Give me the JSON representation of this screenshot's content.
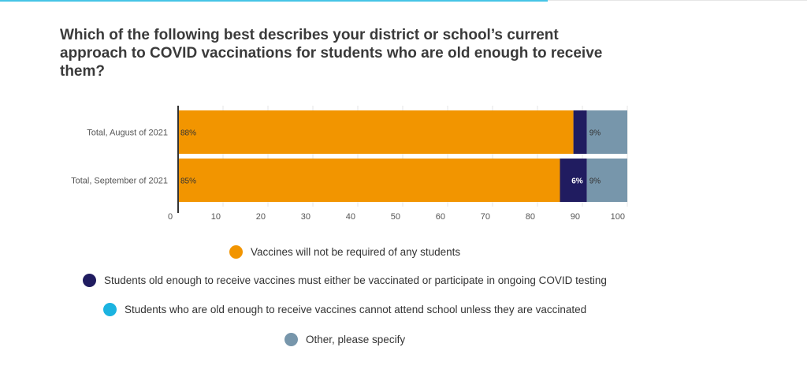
{
  "chart_data": {
    "type": "bar",
    "orientation": "horizontal",
    "stacked": true,
    "title": "Which of the following best describes your district or school’s current approach to COVID vaccinations for students who are old enough to receive them?",
    "categories": [
      "Total, August of 2021",
      "Total, September of 2021"
    ],
    "series": [
      {
        "name": "Vaccines will not be required of any students",
        "color": "#f29500",
        "values": [
          88,
          85
        ],
        "labels": [
          "88%",
          "85%"
        ]
      },
      {
        "name": "Students old enough to receive vaccines must either be vaccinated or participate in ongoing COVID testing",
        "color": "#201c60",
        "values": [
          3,
          6
        ],
        "labels": [
          "",
          "6%"
        ]
      },
      {
        "name": "Students who are old enough to receive vaccines cannot attend school unless they are vaccinated",
        "color": "#1bb3e0",
        "values": [
          0,
          0
        ],
        "labels": [
          "",
          ""
        ]
      },
      {
        "name": "Other, please specify",
        "color": "#7796ab",
        "values": [
          9,
          9
        ],
        "labels": [
          "9%",
          "9%"
        ]
      }
    ],
    "xlim": [
      0,
      100
    ],
    "x_ticks": [
      "0",
      "10",
      "20",
      "30",
      "40",
      "50",
      "60",
      "70",
      "80",
      "90",
      "100"
    ],
    "grid": true,
    "legend_position": "bottom"
  }
}
